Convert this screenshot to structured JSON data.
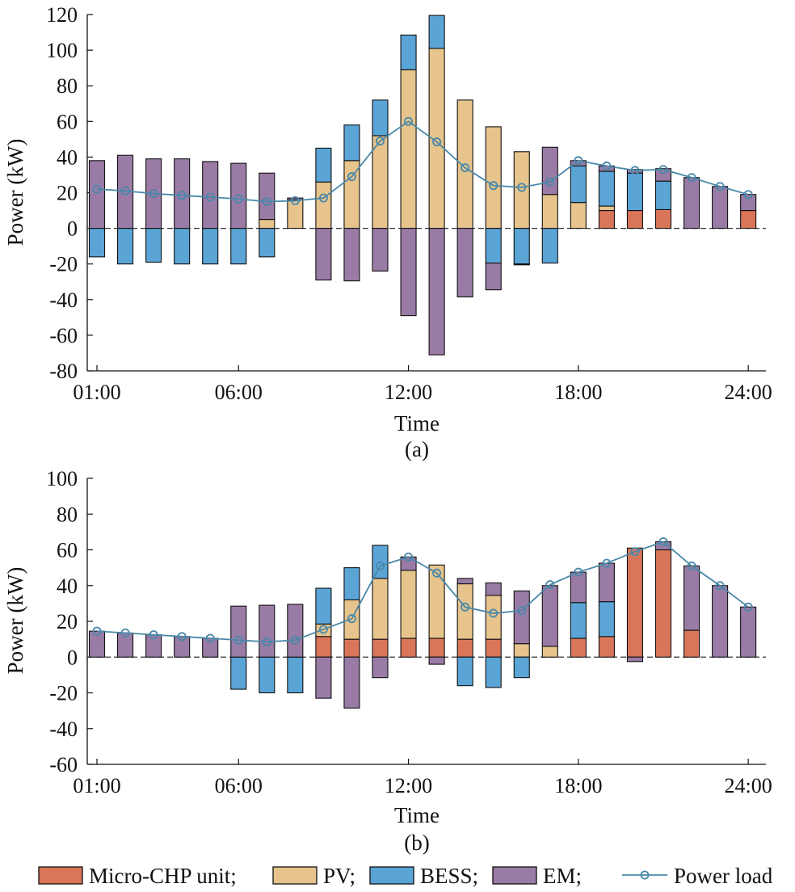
{
  "legend": {
    "entries": [
      {
        "label": "Micro-CHP unit;",
        "kind": "bar",
        "color": "#d9765a"
      },
      {
        "label": "PV;",
        "kind": "bar",
        "color": "#e6c48c"
      },
      {
        "label": "BESS;",
        "kind": "bar",
        "color": "#5ba4d6"
      },
      {
        "label": "EM;",
        "kind": "bar",
        "color": "#9a7ba6"
      },
      {
        "label": "Power load",
        "kind": "line",
        "color": "#4a88aa"
      }
    ]
  },
  "chart_data": [
    {
      "type": "bar",
      "stacked": true,
      "caption": "(a)",
      "xlabel": "Time",
      "ylabel": "Power (kW)",
      "ylim": [
        -80,
        120
      ],
      "yticks": [
        -80,
        -60,
        -40,
        -20,
        0,
        20,
        40,
        60,
        80,
        100,
        120
      ],
      "xticks": [
        {
          "hour": 1,
          "label": "01:00"
        },
        {
          "hour": 6,
          "label": "06:00"
        },
        {
          "hour": 12,
          "label": "12:00"
        },
        {
          "hour": 18,
          "label": "18:00"
        },
        {
          "hour": 24,
          "label": "24:00"
        }
      ],
      "hours": [
        1,
        2,
        3,
        4,
        5,
        6,
        7,
        8,
        9,
        10,
        11,
        12,
        13,
        14,
        15,
        16,
        17,
        18,
        19,
        20,
        21,
        22,
        23,
        24
      ],
      "series": [
        {
          "name": "Micro-CHP unit",
          "color": "#d9765a",
          "values": [
            0,
            0,
            0,
            0,
            0,
            0,
            0,
            0,
            0,
            0,
            0,
            0,
            0,
            0,
            0,
            0,
            0,
            0,
            10,
            10,
            10.5,
            0,
            0,
            10
          ]
        },
        {
          "name": "PV",
          "color": "#e6c48c",
          "values": [
            0,
            0,
            0,
            0,
            0,
            0,
            5,
            16,
            26,
            38,
            52,
            89,
            101,
            72,
            57,
            43,
            19,
            14.5,
            2.5,
            0,
            0,
            0,
            0,
            0
          ]
        },
        {
          "name": "BESS",
          "color": "#5ba4d6",
          "values": [
            -16,
            -20,
            -19,
            -20,
            -20,
            -20,
            -16,
            0,
            19,
            20,
            20,
            19.5,
            18.5,
            0,
            -19.5,
            -20,
            -19.5,
            20.5,
            19.5,
            21,
            16,
            0,
            0,
            0
          ]
        },
        {
          "name": "EM",
          "color": "#9a7ba6",
          "values": [
            38,
            41,
            39,
            39,
            37.5,
            36.5,
            26,
            1,
            -29,
            -29.5,
            -24,
            -49,
            -71,
            -38.5,
            -15,
            -0.5,
            26.5,
            3,
            3,
            2,
            7,
            28.5,
            23.5,
            9
          ]
        }
      ],
      "load": {
        "name": "Power load",
        "color": "#4a88aa",
        "values": [
          22,
          21,
          19.5,
          18.5,
          17.5,
          16.5,
          15,
          15.5,
          17,
          29,
          49,
          60,
          48.5,
          34,
          24,
          23,
          26,
          38,
          35,
          32.5,
          33,
          28.5,
          23.5,
          19
        ]
      }
    },
    {
      "type": "bar",
      "stacked": true,
      "caption": "(b)",
      "xlabel": "Time",
      "ylabel": "Power (kW)",
      "ylim": [
        -60,
        100
      ],
      "yticks": [
        -60,
        -40,
        -20,
        0,
        20,
        40,
        60,
        80,
        100
      ],
      "xticks": [
        {
          "hour": 1,
          "label": "01:00"
        },
        {
          "hour": 6,
          "label": "06:00"
        },
        {
          "hour": 12,
          "label": "12:00"
        },
        {
          "hour": 18,
          "label": "18:00"
        },
        {
          "hour": 24,
          "label": "24:00"
        }
      ],
      "hours": [
        1,
        2,
        3,
        4,
        5,
        6,
        7,
        8,
        9,
        10,
        11,
        12,
        13,
        14,
        15,
        16,
        17,
        18,
        19,
        20,
        21,
        22,
        23,
        24
      ],
      "series": [
        {
          "name": "Micro-CHP unit",
          "color": "#d9765a",
          "values": [
            0,
            0,
            0,
            0,
            0,
            0,
            0,
            0,
            11.5,
            10,
            10,
            10.5,
            10.5,
            10,
            10,
            0,
            0,
            10.5,
            11.5,
            61,
            60,
            15,
            0,
            0
          ]
        },
        {
          "name": "PV",
          "color": "#e6c48c",
          "values": [
            0,
            0,
            0,
            0,
            0,
            0,
            0,
            0,
            7,
            22,
            34,
            38,
            41,
            31,
            24.5,
            7.5,
            6,
            0,
            0,
            0,
            0,
            0,
            0,
            0
          ]
        },
        {
          "name": "BESS",
          "color": "#5ba4d6",
          "values": [
            0,
            0,
            0,
            0,
            0,
            -18,
            -20,
            -20,
            20,
            18,
            18.5,
            0,
            0,
            -16,
            -17,
            -11.5,
            0,
            20,
            19.5,
            0,
            0,
            0,
            0,
            0
          ]
        },
        {
          "name": "EM",
          "color": "#9a7ba6",
          "values": [
            14.5,
            13.5,
            12.5,
            11.5,
            10.5,
            28.5,
            29,
            29.5,
            -23,
            -28.5,
            -11.5,
            7.5,
            -4,
            3,
            7,
            29.5,
            34,
            17,
            21.5,
            -2.5,
            4.5,
            36,
            40,
            28
          ]
        }
      ],
      "load": {
        "name": "Power load",
        "color": "#4a88aa",
        "values": [
          14.5,
          13.5,
          12.5,
          11.5,
          10.5,
          9.5,
          8.5,
          9.5,
          15.5,
          21.5,
          51,
          56,
          47,
          28,
          24.5,
          26,
          40.5,
          47.5,
          52.5,
          59,
          64.5,
          51,
          40,
          28
        ]
      }
    }
  ]
}
